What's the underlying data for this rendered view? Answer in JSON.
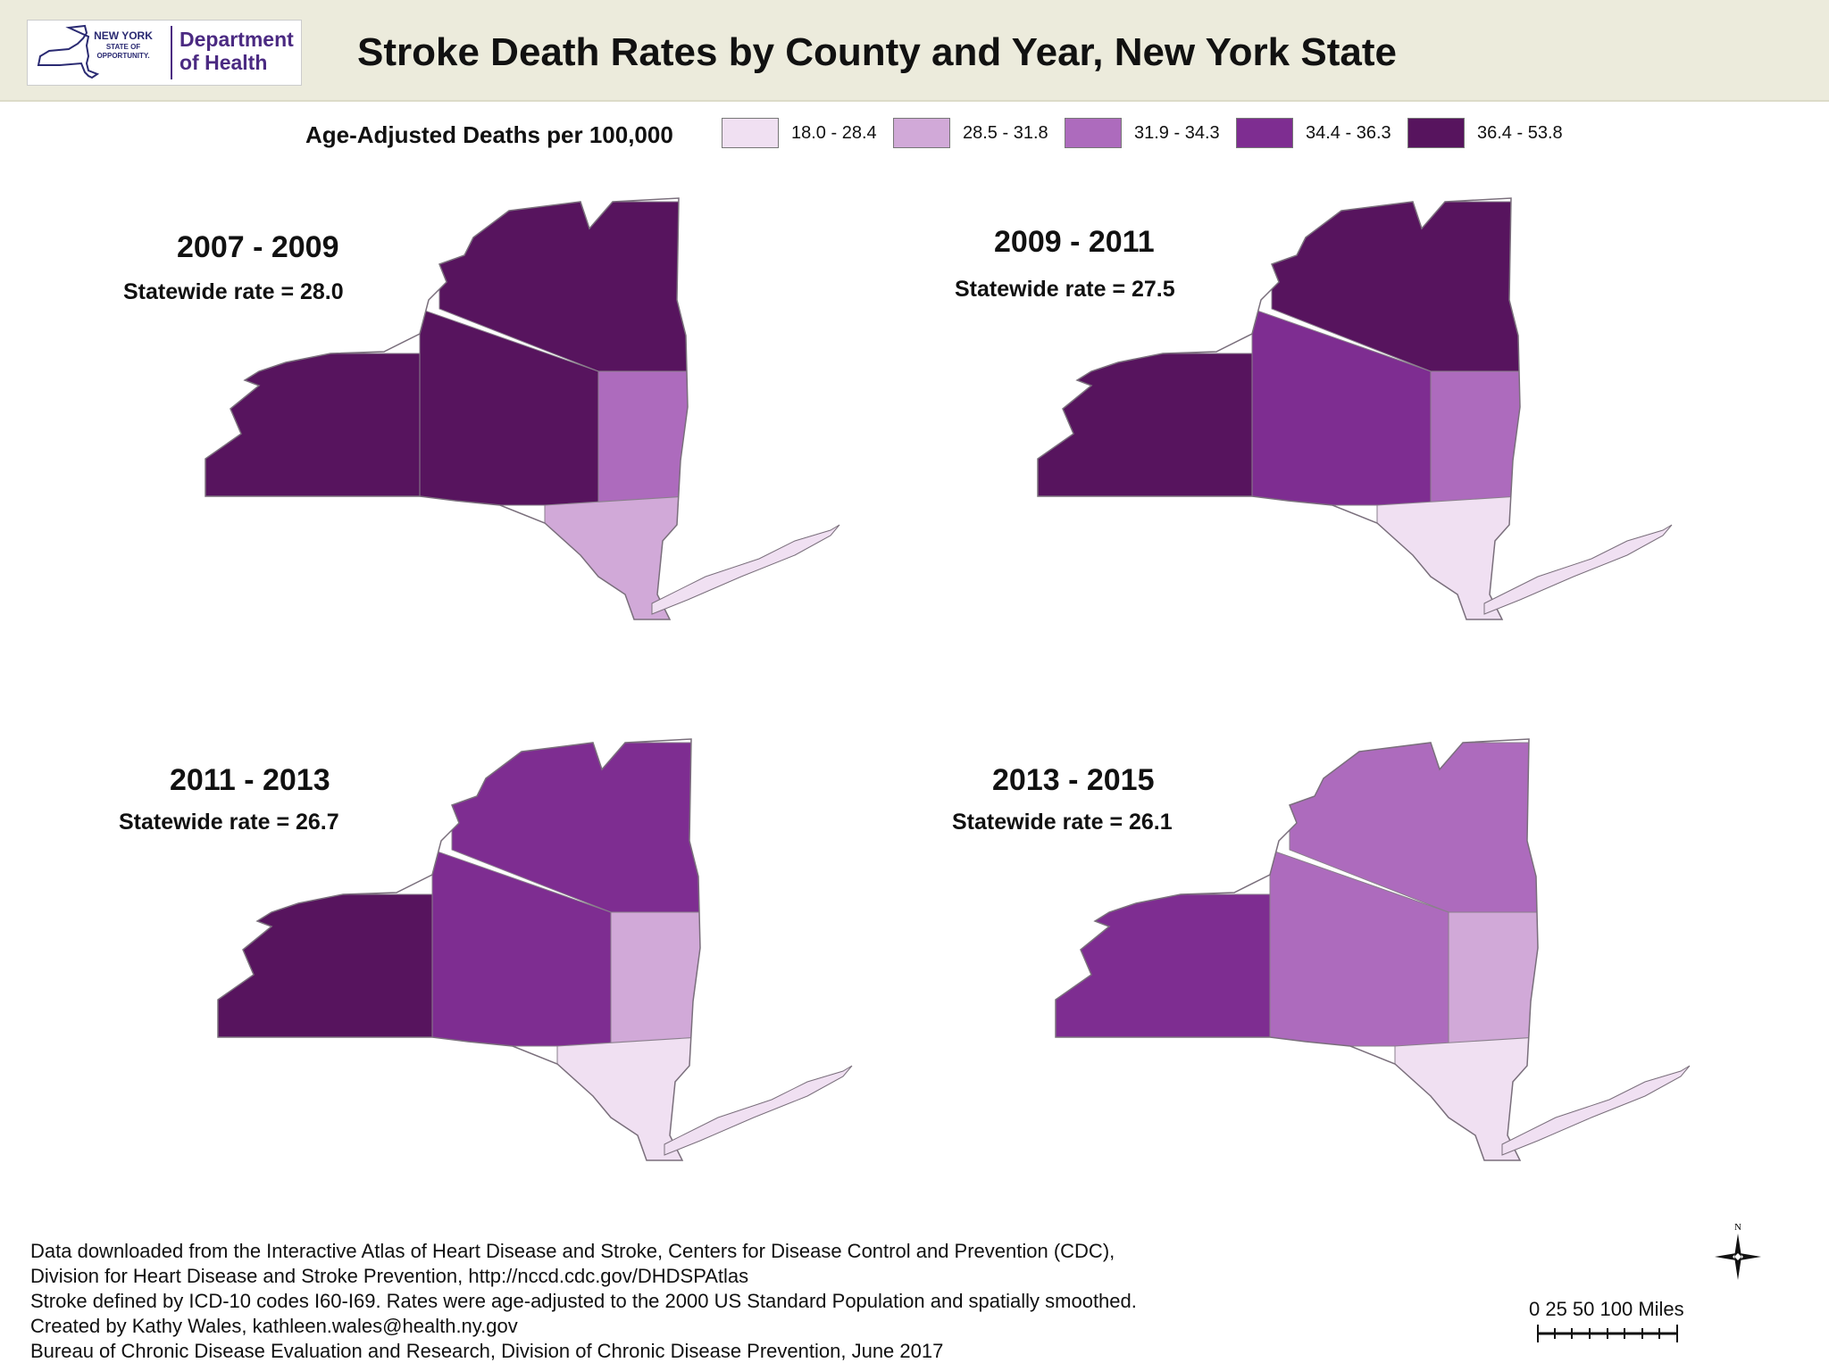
{
  "header": {
    "logo": {
      "state_line1": "NEW YORK",
      "state_line2": "STATE OF",
      "state_line3": "OPPORTUNITY.",
      "dept_line1": "Department",
      "dept_line2": "of Health"
    },
    "title": "Stroke Death Rates by County and Year, New York State"
  },
  "legend": {
    "title": "Age-Adjusted Deaths per 100,000",
    "classes": [
      {
        "label": "18.0 - 28.4",
        "color": "#f0e0f2"
      },
      {
        "label": "28.5 - 31.8",
        "color": "#d1a9d8"
      },
      {
        "label": "31.9 - 34.3",
        "color": "#ad6bbd"
      },
      {
        "label": "34.4 - 36.3",
        "color": "#7e2d91"
      },
      {
        "label": "36.4 - 53.8",
        "color": "#57145e"
      }
    ]
  },
  "maps": [
    {
      "period": "2007 - 2009",
      "rate_text": "Statewide rate = 28.0"
    },
    {
      "period": "2009 - 2011",
      "rate_text": "Statewide rate = 27.5"
    },
    {
      "period": "2011 - 2013",
      "rate_text": "Statewide rate = 26.7"
    },
    {
      "period": "2013 - 2015",
      "rate_text": "Statewide rate = 26.1"
    }
  ],
  "notes": [
    "Data downloaded from the Interactive Atlas of Heart Disease and Stroke, Centers for Disease Control and Prevention (CDC),",
    "Division for Heart Disease and Stroke Prevention, http://nccd.cdc.gov/DHDSPAtlas",
    "Stroke defined by ICD-10 codes I60-I69. Rates were age-adjusted to the 2000 US Standard Population and spatially smoothed.",
    "Created by Kathy Wales, kathleen.wales@health.ny.gov",
    "Bureau of Chronic Disease Evaluation and Research, Division of Chronic Disease Prevention, June 2017"
  ],
  "scale": {
    "labels": "0   25  50        100 Miles"
  },
  "north_label": "N"
}
